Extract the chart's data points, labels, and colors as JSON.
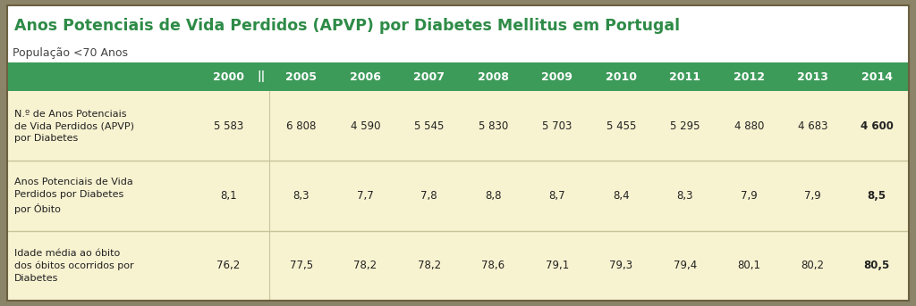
{
  "title": "Anos Potenciais de Vida Perdidos (APVP) por Diabetes Mellitus em Portugal",
  "subtitle": "População <70 Anos",
  "header_bg": "#3d9b5a",
  "header_text_color": "#ffffff",
  "title_color": "#2e8b47",
  "title_bg": "#ffffff",
  "subtitle_color": "#444444",
  "subtitle_bg": "#ffffff",
  "row_bg": "#f7f2d0",
  "sep_color": "#c8c49a",
  "outer_bg": "#8c8468",
  "years": [
    "2000",
    "||",
    "2005",
    "2006",
    "2007",
    "2008",
    "2009",
    "2010",
    "2011",
    "2012",
    "2013",
    "2014"
  ],
  "row1_label": "N.º de Anos Potenciais\nde Vida Perdidos (APVP)\npor Diabetes",
  "row1_values": [
    "5 583",
    "",
    "6 808",
    "4 590",
    "5 545",
    "5 830",
    "5 703",
    "5 455",
    "5 295",
    "4 880",
    "4 683",
    "4 600"
  ],
  "row2_label": "Anos Potenciais de Vida\nPerdidos por Diabetes\npor Óbito",
  "row2_values": [
    "8,1",
    "",
    "8,3",
    "7,7",
    "7,8",
    "8,8",
    "8,7",
    "8,4",
    "8,3",
    "7,9",
    "7,9",
    "8,5"
  ],
  "row3_label": "Idade média ao óbito\ndos óbitos ocorridos por\nDiabetes",
  "row3_values": [
    "76,2",
    "",
    "77,5",
    "78,2",
    "78,2",
    "78,6",
    "79,1",
    "79,3",
    "79,4",
    "80,1",
    "80,2",
    "80,5"
  ],
  "figsize": [
    10.24,
    3.43
  ],
  "dpi": 100
}
